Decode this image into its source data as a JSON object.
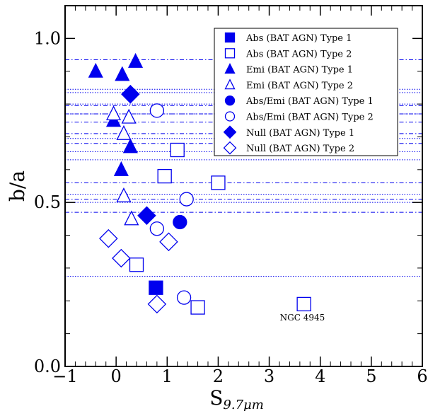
{
  "chart_data": {
    "type": "scatter",
    "xlabel": "S",
    "xlabel_sub": "9.7μm",
    "ylabel": "b/a",
    "xlim": [
      -1,
      6
    ],
    "ylim": [
      0.0,
      1.1
    ],
    "xticks": [
      -1,
      0,
      1,
      2,
      3,
      4,
      5,
      6
    ],
    "xtick_labels": [
      "−1",
      "0",
      "1",
      "2",
      "3",
      "4",
      "5",
      "6"
    ],
    "yticks": [
      0.0,
      0.5,
      1.0
    ],
    "ytick_labels": [
      "0.0",
      "0.5",
      "1.0"
    ],
    "grid": false,
    "legend_position": "top-right",
    "color": "#0000ee",
    "series": [
      {
        "name": "Abs (BAT AGN) Type 1",
        "marker": "square",
        "filled": true,
        "x": [
          0.78
        ],
        "y": [
          0.24
        ]
      },
      {
        "name": "Abs (BAT AGN) Type 2",
        "marker": "square",
        "filled": false,
        "x": [
          0.4,
          0.95,
          1.2,
          1.6,
          2.0,
          3.68
        ],
        "y": [
          0.31,
          0.58,
          0.66,
          0.18,
          0.56,
          0.19
        ]
      },
      {
        "name": "Emi (BAT AGN) Type 1",
        "marker": "triangle",
        "filled": true,
        "x": [
          -0.4,
          0.12,
          0.38,
          -0.05,
          0.1,
          0.28
        ],
        "y": [
          0.9,
          0.89,
          0.93,
          0.75,
          0.6,
          0.67
        ]
      },
      {
        "name": "Emi (BAT AGN) Type 2",
        "marker": "triangle",
        "filled": false,
        "x": [
          -0.05,
          0.25,
          0.15,
          0.15,
          0.3
        ],
        "y": [
          0.77,
          0.76,
          0.71,
          0.52,
          0.45
        ]
      },
      {
        "name": "Abs/Emi (BAT AGN) Type 1",
        "marker": "circle",
        "filled": true,
        "x": [
          1.25
        ],
        "y": [
          0.44
        ]
      },
      {
        "name": "Abs/Emi (BAT AGN) Type 2",
        "marker": "circle",
        "filled": false,
        "x": [
          0.8,
          1.38,
          0.8,
          1.33
        ],
        "y": [
          0.78,
          0.51,
          0.42,
          0.21
        ]
      },
      {
        "name": "Null (BAT AGN) Type 1",
        "marker": "diamond",
        "filled": true,
        "x": [
          0.28,
          0.6
        ],
        "y": [
          0.83,
          0.46
        ]
      },
      {
        "name": "Null (BAT AGN) Type 2",
        "marker": "diamond",
        "filled": false,
        "x": [
          -0.15,
          0.1,
          1.03,
          0.8
        ],
        "y": [
          0.39,
          0.33,
          0.38,
          0.19
        ]
      }
    ],
    "reference_lines": {
      "dashdot": [
        0.935,
        0.795,
        0.77,
        0.745,
        0.71,
        0.68,
        0.56,
        0.51,
        0.47
      ],
      "dotted": [
        0.845,
        0.835,
        0.8,
        0.77,
        0.695,
        0.655,
        0.63,
        0.525,
        0.5,
        0.275
      ]
    },
    "annotations": [
      {
        "text": "NGC 4945",
        "x": 3.65,
        "y": 0.14
      }
    ]
  }
}
